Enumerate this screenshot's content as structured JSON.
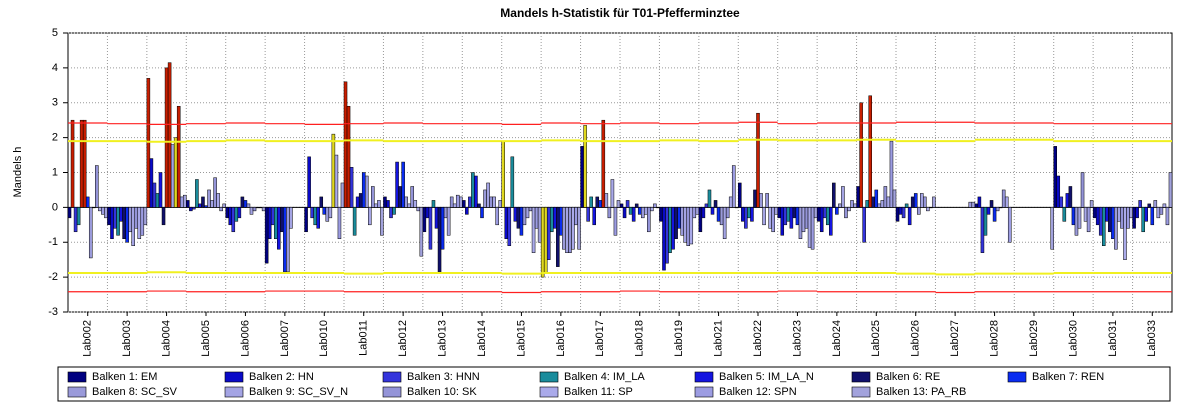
{
  "chart_data": {
    "type": "bar",
    "title": "Mandels h-Statistik für T01-Pfefferminztee",
    "y_label": "Mandels h",
    "categories": [
      "Lab002",
      "Lab003",
      "Lab004",
      "Lab005",
      "Lab006",
      "Lab007",
      "Lab010",
      "Lab011",
      "Lab012",
      "Lab013",
      "Lab014",
      "Lab015",
      "Lab016",
      "Lab017",
      "Lab018",
      "Lab019",
      "Lab021",
      "Lab022",
      "Lab023",
      "Lab024",
      "Lab025",
      "Lab026",
      "Lab027",
      "Lab028",
      "Lab029",
      "Lab030",
      "Lab031",
      "Lab033"
    ],
    "ylim": [
      -3,
      5
    ],
    "yticks": [
      -3,
      -2,
      -1,
      0,
      1,
      2,
      3,
      4,
      5
    ],
    "grid": true,
    "legend": "bottom",
    "series": [
      {
        "name": "Balken 1: EM",
        "color": "#000080",
        "values": [
          -0.3,
          -0.5,
          3.7,
          0.2,
          -0.3,
          -1.6,
          -0.7,
          3.6,
          0.3,
          -0.7,
          0.2,
          1.9,
          -2.0,
          1.75,
          0.1,
          -0.4,
          -0.7,
          0.7,
          -0.3,
          -0.4,
          0.6,
          -0.4,
          null,
          0.1,
          null,
          1.75,
          -0.3,
          -0.6
        ]
      },
      {
        "name": "Balken 2: HN",
        "color": "#0a0ac8",
        "values": [
          2.5,
          -0.9,
          1.4,
          -0.1,
          -0.5,
          -0.9,
          1.45,
          2.9,
          0.2,
          -0.3,
          -0.2,
          -0.9,
          -1.9,
          2.35,
          -0.3,
          -1.8,
          -0.3,
          -0.4,
          -0.8,
          -0.7,
          3.0,
          -0.2,
          null,
          0.3,
          null,
          0.9,
          -0.5,
          -0.3
        ]
      },
      {
        "name": "Balken 3: HNN",
        "color": "#3434dc",
        "values": [
          -0.7,
          -0.6,
          0.7,
          -0.05,
          -0.7,
          -0.5,
          -0.3,
          1.15,
          -0.3,
          -1.2,
          0.3,
          -1.1,
          -1.5,
          -0.4,
          0.2,
          -1.6,
          0.1,
          -0.6,
          -0.5,
          -0.3,
          -1.0,
          -0.3,
          null,
          -1.3,
          null,
          0.3,
          -0.8,
          0.2
        ]
      },
      {
        "name": "Balken 4: IM_LA",
        "color": "#1a8c9c",
        "values": [
          -0.5,
          -0.8,
          0.4,
          0.8,
          -0.4,
          -0.9,
          -0.5,
          -0.8,
          -0.2,
          0.2,
          1.0,
          1.45,
          -0.7,
          0.3,
          -0.2,
          -1.3,
          0.5,
          -0.3,
          -0.4,
          -0.5,
          0.2,
          0.1,
          null,
          -0.8,
          null,
          -0.4,
          -1.1,
          -0.7
        ]
      },
      {
        "name": "Balken 5: IM_LA_N",
        "color": "#1414e0",
        "values": [
          2.5,
          -0.4,
          1.0,
          0.1,
          -0.3,
          -1.2,
          -0.6,
          0.3,
          1.3,
          -0.6,
          0.9,
          -0.4,
          -0.6,
          -0.5,
          -0.4,
          -1.2,
          -0.2,
          -0.4,
          -0.6,
          -0.8,
          3.2,
          -0.5,
          null,
          -0.2,
          null,
          0.4,
          -0.4,
          -0.4
        ]
      },
      {
        "name": "Balken 6: RE",
        "color": "#10106c",
        "values": [
          2.5,
          -0.9,
          -0.5,
          0.3,
          0.3,
          -0.7,
          0.3,
          0.4,
          0.6,
          -1.85,
          0.1,
          -0.6,
          -1.7,
          0.3,
          0.1,
          -0.9,
          0.2,
          0.5,
          -0.3,
          0.7,
          0.3,
          0.3,
          null,
          0.2,
          null,
          0.6,
          -0.7,
          0.1
        ]
      },
      {
        "name": "Balken 7: REN",
        "color": "#0a2cf0",
        "values": [
          0.3,
          -1.0,
          4.0,
          0.05,
          0.2,
          -1.85,
          -0.2,
          1.0,
          1.3,
          -1.2,
          -0.3,
          -0.8,
          -0.8,
          0.2,
          -0.2,
          -0.6,
          -0.4,
          2.7,
          -0.5,
          -0.2,
          0.5,
          0.4,
          null,
          -0.4,
          null,
          -0.5,
          -0.9,
          -0.5
        ]
      },
      {
        "name": "Balken 8: SC_SV",
        "color": "#9a9ada",
        "values": [
          -1.45,
          -0.7,
          4.15,
          0.5,
          0.1,
          -1.85,
          -0.4,
          0.9,
          0.3,
          -0.3,
          0.5,
          -0.5,
          -1.2,
          2.5,
          -0.3,
          -0.8,
          -0.5,
          0.4,
          -0.9,
          0.1,
          0.1,
          -0.2,
          null,
          -0.1,
          null,
          -0.8,
          -1.2,
          0.2
        ]
      },
      {
        "name": "Balken 9: SC_SV_N",
        "color": "#a4a4e4",
        "values": [
          0.0,
          -1.1,
          1.8,
          0.2,
          -0.2,
          -0.6,
          -0.3,
          -0.5,
          0.1,
          -0.8,
          0.7,
          -0.3,
          -1.3,
          0.4,
          -0.2,
          -1.0,
          -0.9,
          -0.5,
          -0.7,
          0.6,
          0.2,
          0.4,
          null,
          0.0,
          null,
          -0.6,
          -0.4,
          -0.3
        ]
      },
      {
        "name": "Balken 10: SK",
        "color": "#9494d8",
        "values": [
          1.2,
          -0.6,
          2.0,
          0.85,
          -0.1,
          null,
          2.1,
          0.6,
          0.6,
          0.3,
          0.3,
          -0.1,
          -1.3,
          -0.3,
          -0.7,
          -1.1,
          -0.3,
          0.4,
          -0.6,
          -0.3,
          0.6,
          0.3,
          null,
          0.5,
          null,
          1.0,
          -0.6,
          -0.2
        ]
      },
      {
        "name": "Balken 11: SP",
        "color": "#aaaaea",
        "values": [
          -0.1,
          -0.9,
          2.9,
          0.4,
          0.0,
          null,
          1.5,
          0.1,
          0.2,
          0.1,
          0.3,
          -1.3,
          -1.2,
          0.8,
          -0.1,
          -1.05,
          0.3,
          -0.6,
          -1.15,
          -0.1,
          0.3,
          -0.1,
          null,
          0.3,
          null,
          -0.4,
          -1.5,
          0.1
        ]
      },
      {
        "name": "Balken 12: SPN",
        "color": "#9c9ce2",
        "values": [
          -0.2,
          -0.8,
          0.3,
          -0.1,
          0.0,
          null,
          -0.9,
          0.2,
          -0.1,
          0.35,
          -0.5,
          -0.6,
          -0.5,
          -0.8,
          0.1,
          -0.3,
          1.2,
          -0.7,
          -1.2,
          0.2,
          1.9,
          0.0,
          0.15,
          -1.0,
          null,
          -0.7,
          -0.6,
          -0.5
        ]
      },
      {
        "name": "Balken 13: PA_RB",
        "color": "#a2a2dc",
        "values": [
          -0.3,
          -0.5,
          0.35,
          0.1,
          -0.1,
          null,
          0.7,
          -0.8,
          -1.4,
          0.3,
          0.2,
          -1.0,
          -1.2,
          0.2,
          0.0,
          -0.2,
          0.0,
          -0.2,
          -0.3,
          0.1,
          0.5,
          0.3,
          0.15,
          null,
          -1.2,
          0.2,
          -0.3,
          1.0
        ]
      }
    ],
    "limit_lines": [
      {
        "color": "#ff2020",
        "bar_color": "#c81e00",
        "values": [
          2.42,
          2.4,
          2.38,
          2.4,
          2.42,
          2.4,
          2.38,
          2.4,
          2.42,
          2.4,
          2.4,
          2.38,
          2.42,
          2.4,
          2.42,
          2.4,
          2.42,
          2.44,
          2.4,
          2.42,
          2.42,
          2.44,
          2.44,
          2.42,
          2.42,
          2.4,
          2.4,
          2.4
        ]
      },
      {
        "color": "#f0f020",
        "bar_color": "#e0d820",
        "values": [
          1.9,
          1.9,
          1.88,
          1.9,
          1.92,
          1.9,
          1.9,
          1.92,
          1.9,
          1.9,
          1.9,
          1.9,
          1.92,
          1.9,
          1.9,
          1.92,
          1.9,
          1.94,
          1.92,
          1.92,
          1.94,
          1.9,
          1.9,
          1.94,
          1.94,
          1.9,
          1.9,
          1.9
        ]
      },
      {
        "color": "#f0f020",
        "bar_color": "#e0d820",
        "values": [
          -1.88,
          -1.88,
          -1.86,
          -1.88,
          -1.88,
          -1.88,
          -1.88,
          -1.9,
          -1.88,
          -1.88,
          -1.88,
          -1.9,
          -1.88,
          -1.88,
          -1.88,
          -1.88,
          -1.88,
          -1.88,
          -1.88,
          -1.88,
          -1.88,
          -1.9,
          -1.92,
          -1.9,
          -1.9,
          -1.88,
          -1.88,
          -1.88
        ]
      },
      {
        "color": "#ff2020",
        "bar_color": "#c81e00",
        "values": [
          -2.42,
          -2.42,
          -2.4,
          -2.42,
          -2.42,
          -2.4,
          -2.4,
          -2.42,
          -2.42,
          -2.42,
          -2.42,
          -2.44,
          -2.42,
          -2.42,
          -2.4,
          -2.42,
          -2.42,
          -2.42,
          -2.4,
          -2.42,
          -2.42,
          -2.42,
          -2.44,
          -2.42,
          -2.42,
          -2.42,
          -2.42,
          -2.42
        ]
      }
    ]
  }
}
